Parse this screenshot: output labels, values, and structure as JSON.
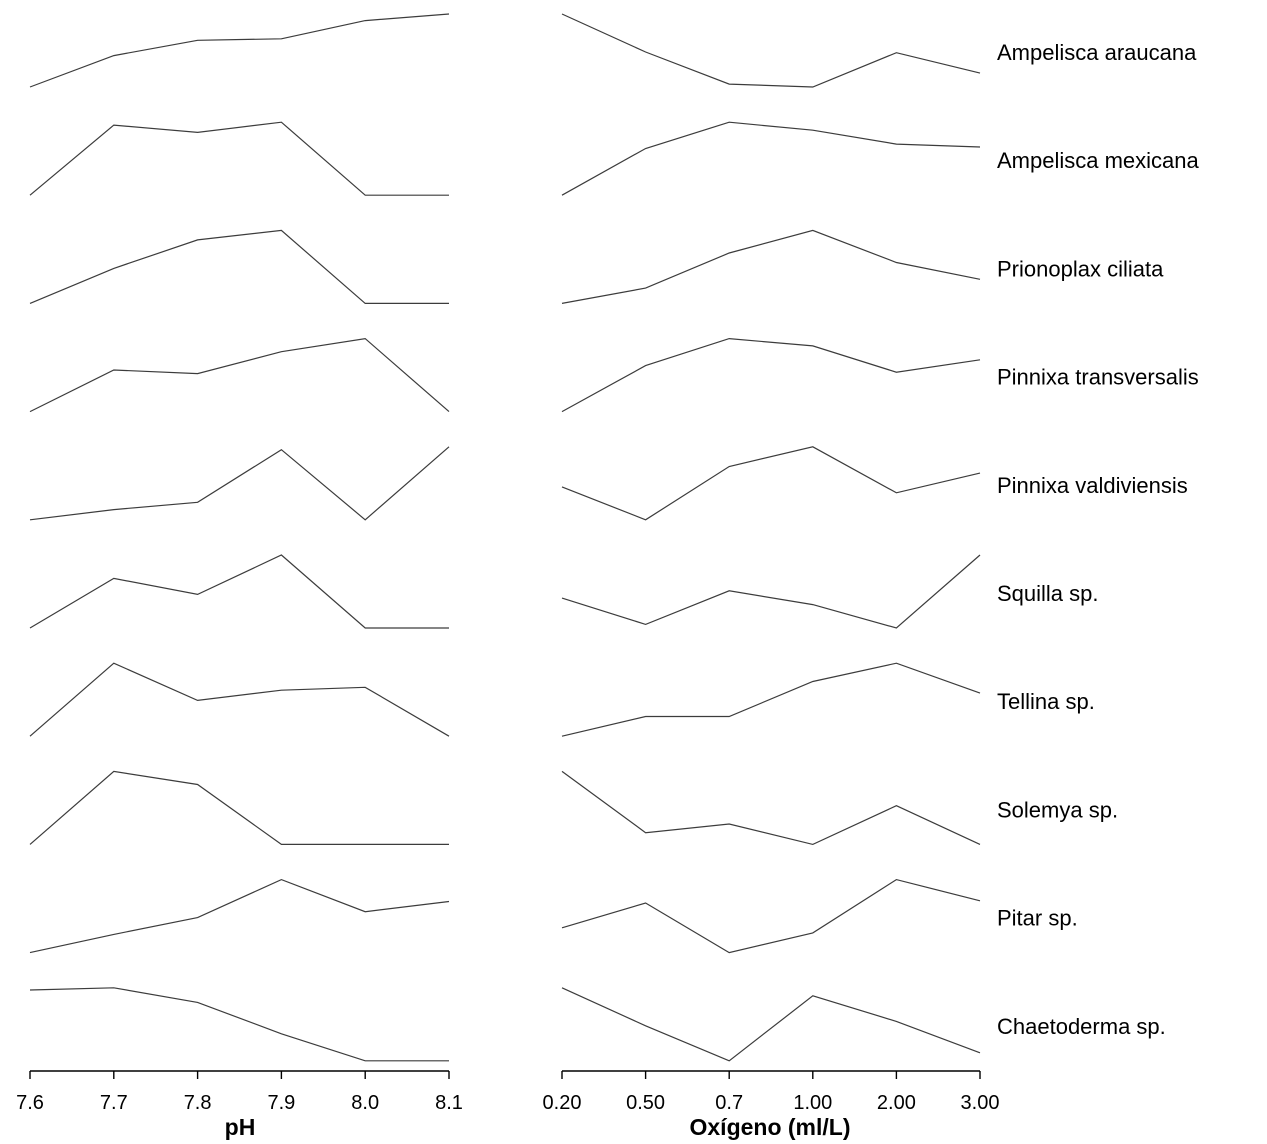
{
  "chart_data": [
    {
      "type": "line",
      "xlabel": "pH",
      "categories": [
        "7.6",
        "7.7",
        "7.8",
        "7.9",
        "8.0",
        "8.1"
      ],
      "ylabel": "",
      "grid": false,
      "series": [
        {
          "name": "Ampelisca araucana",
          "values": [
            0.0,
            0.43,
            0.64,
            0.66,
            0.91,
            1.0
          ]
        },
        {
          "name": "Ampelisca mexicana",
          "values": [
            0.0,
            0.96,
            0.86,
            1.0,
            0.0,
            0.0
          ]
        },
        {
          "name": "Prionoplax ciliata",
          "values": [
            0.0,
            0.48,
            0.87,
            1.0,
            0.0,
            0.0
          ]
        },
        {
          "name": "Pinnixa transversalis",
          "values": [
            0.0,
            0.57,
            0.52,
            0.82,
            1.0,
            0.0
          ]
        },
        {
          "name": "Pinnixa valdiviensis",
          "values": [
            0.0,
            0.14,
            0.24,
            0.96,
            0.0,
            1.0
          ]
        },
        {
          "name": "Squilla sp.",
          "values": [
            0.0,
            0.68,
            0.46,
            1.0,
            0.0,
            0.0
          ]
        },
        {
          "name": "Tellina sp.",
          "values": [
            0.0,
            1.0,
            0.49,
            0.63,
            0.67,
            0.0
          ]
        },
        {
          "name": "Solemya sp.",
          "values": [
            0.0,
            1.0,
            0.82,
            0.0,
            0.0,
            0.0
          ]
        },
        {
          "name": "Pitar sp.",
          "values": [
            0.0,
            0.25,
            0.48,
            1.0,
            0.56,
            0.7
          ]
        },
        {
          "name": "Chaetoderma sp.",
          "values": [
            0.97,
            1.0,
            0.8,
            0.37,
            0.0,
            0.0
          ]
        }
      ]
    },
    {
      "type": "line",
      "xlabel": "Oxígeno (ml/L)",
      "categories": [
        "0.20",
        "0.50",
        "0.7",
        "1.00",
        "2.00",
        "3.00"
      ],
      "ylabel": "",
      "grid": false,
      "series": [
        {
          "name": "Ampelisca araucana",
          "values": [
            1.0,
            0.48,
            0.04,
            0.0,
            0.47,
            0.19
          ]
        },
        {
          "name": "Ampelisca mexicana",
          "values": [
            0.0,
            0.64,
            1.0,
            0.89,
            0.7,
            0.66
          ]
        },
        {
          "name": "Prionoplax ciliata",
          "values": [
            0.0,
            0.21,
            0.69,
            1.0,
            0.56,
            0.33
          ]
        },
        {
          "name": "Pinnixa transversalis",
          "values": [
            0.0,
            0.63,
            1.0,
            0.9,
            0.54,
            0.71
          ]
        },
        {
          "name": "Pinnixa valdiviensis",
          "values": [
            0.45,
            0.0,
            0.73,
            1.0,
            0.37,
            0.64
          ]
        },
        {
          "name": "Squilla sp.",
          "values": [
            0.41,
            0.05,
            0.51,
            0.32,
            0.0,
            1.0
          ]
        },
        {
          "name": "Tellina sp.",
          "values": [
            0.0,
            0.27,
            0.27,
            0.75,
            1.0,
            0.59
          ]
        },
        {
          "name": "Solemya sp.",
          "values": [
            1.0,
            0.16,
            0.28,
            0.0,
            0.53,
            0.0
          ]
        },
        {
          "name": "Pitar sp.",
          "values": [
            0.34,
            0.68,
            0.0,
            0.27,
            1.0,
            0.71
          ]
        },
        {
          "name": "Chaetoderma sp.",
          "values": [
            1.0,
            0.48,
            0.0,
            0.89,
            0.54,
            0.11
          ]
        }
      ]
    }
  ]
}
